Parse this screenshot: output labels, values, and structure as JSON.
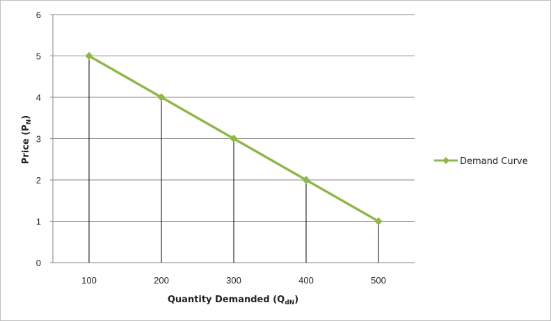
{
  "chart_data": {
    "type": "line",
    "title": "",
    "xlabel": {
      "main": "Quantity Demanded (Q",
      "sub": "dN",
      "close": ")"
    },
    "ylabel": {
      "main": "Price (P",
      "sub": "N",
      "close": ")"
    },
    "categories": [
      "100",
      "200",
      "300",
      "400",
      "500"
    ],
    "ylim": [
      0,
      6
    ],
    "yticks": [
      0,
      1,
      2,
      3,
      4,
      5,
      6
    ],
    "grid": true,
    "drop_lines": true,
    "legend_position": "right",
    "series": [
      {
        "name": "Demand Curve",
        "values": [
          5,
          4,
          3,
          2,
          1
        ],
        "color": "#8fb847",
        "marker": "diamond"
      }
    ]
  },
  "colors": {
    "gridline": "#868686",
    "drop_line": "#000000",
    "series": "#8fb847"
  }
}
